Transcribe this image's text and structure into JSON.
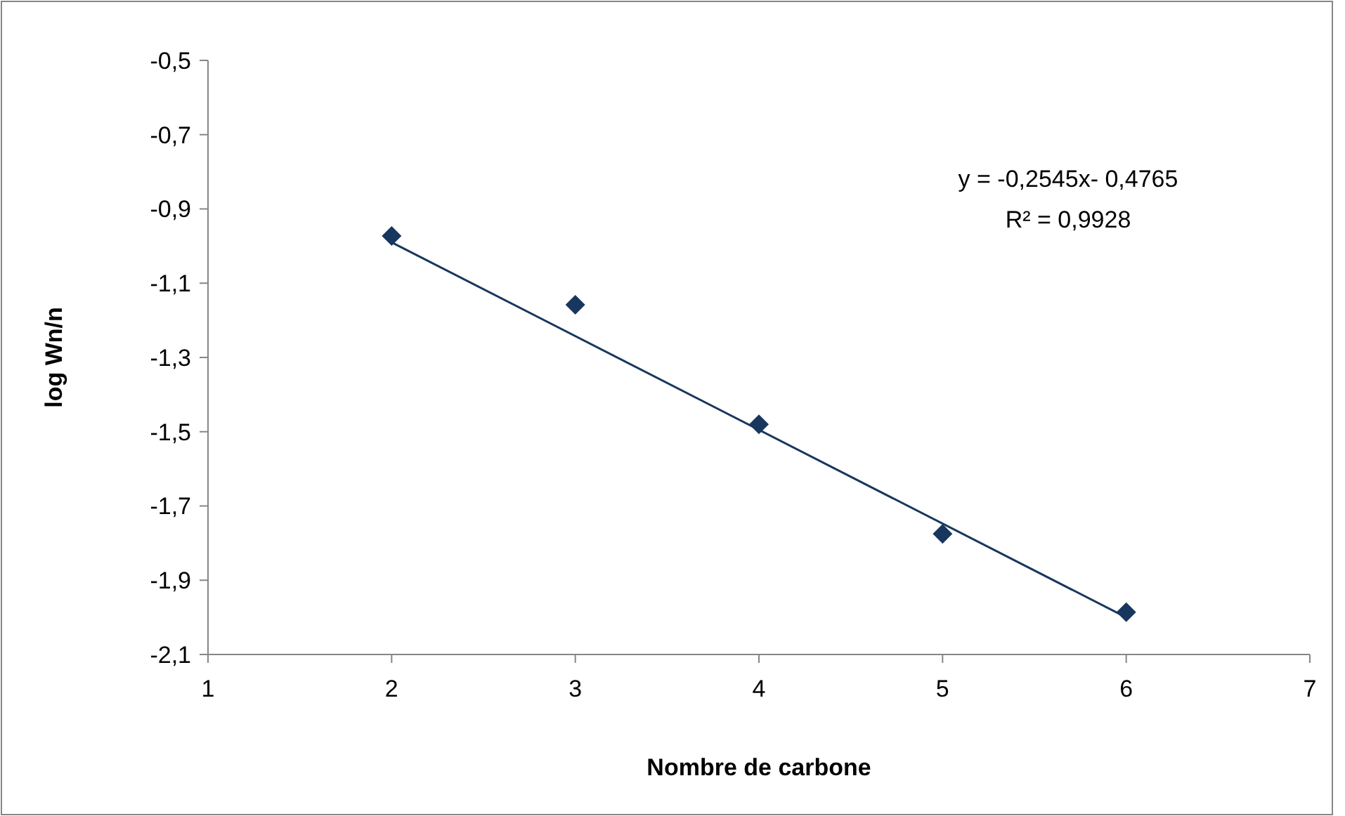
{
  "chart_data": {
    "type": "scatter",
    "xlabel": "Nombre de carbone",
    "ylabel": "log Wn/n",
    "x": [
      2,
      3,
      4,
      5,
      6
    ],
    "series": [
      {
        "color": "#17375e",
        "values": [
          -0.973,
          -1.158,
          -1.48,
          -1.775,
          -1.986
        ],
        "marker": "diamond"
      },
      {
        "type": "line",
        "color": "#17375e",
        "x": [
          2,
          6
        ],
        "values": [
          -0.99,
          -2.0
        ],
        "marker": "none",
        "line_style": "solid"
      }
    ],
    "xlim": [
      1,
      7
    ],
    "xticks": [
      1,
      2,
      3,
      4,
      5,
      6,
      7
    ],
    "ylim": [
      -2.1,
      -0.5
    ],
    "yticks": [
      {
        "value": -2.1,
        "label": "-2,1"
      },
      {
        "value": -1.9,
        "label": "-1,9"
      },
      {
        "value": -1.7,
        "label": "-1,7"
      },
      {
        "value": -1.5,
        "label": "-1,5"
      },
      {
        "value": -1.3,
        "label": "-1,3"
      },
      {
        "value": -1.1,
        "label": "-1,1"
      },
      {
        "value": -0.9,
        "label": "-0,9"
      },
      {
        "value": -0.7,
        "label": "-0,7"
      },
      {
        "value": -0.5,
        "label": "-0,5"
      }
    ],
    "grid": false,
    "annotations": [
      "y = -0,2545x- 0,4765",
      "R² = 0,9928"
    ]
  }
}
